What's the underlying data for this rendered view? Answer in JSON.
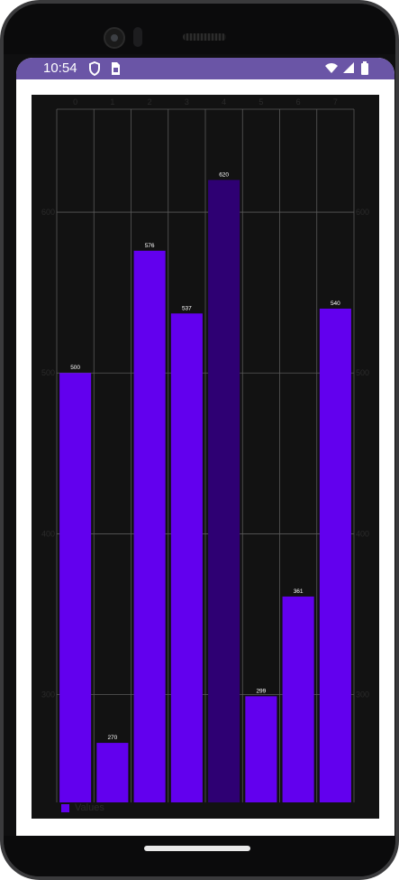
{
  "status_bar": {
    "time": "10:54",
    "icons": [
      "shield-icon",
      "sim-card-icon",
      "wifi-icon",
      "cell-signal-icon",
      "battery-icon"
    ],
    "bg_color": "#6a55a6"
  },
  "chart_data": {
    "type": "bar",
    "categories": [
      "0",
      "1",
      "2",
      "3",
      "4",
      "5",
      "6",
      "7"
    ],
    "values": [
      500,
      270,
      576,
      537,
      620,
      299,
      361,
      540
    ],
    "colors": [
      "#6200ee",
      "#6200ee",
      "#6200ee",
      "#6200ee",
      "#2e0073",
      "#6200ee",
      "#6200ee",
      "#6200ee"
    ],
    "ylim": [
      233,
      664
    ],
    "yticks": [
      300,
      400,
      500,
      600
    ],
    "title": "",
    "xlabel": "",
    "ylabel": "",
    "grid": true,
    "legend": {
      "position": "bottom-left",
      "entries": [
        "Values"
      ]
    }
  }
}
